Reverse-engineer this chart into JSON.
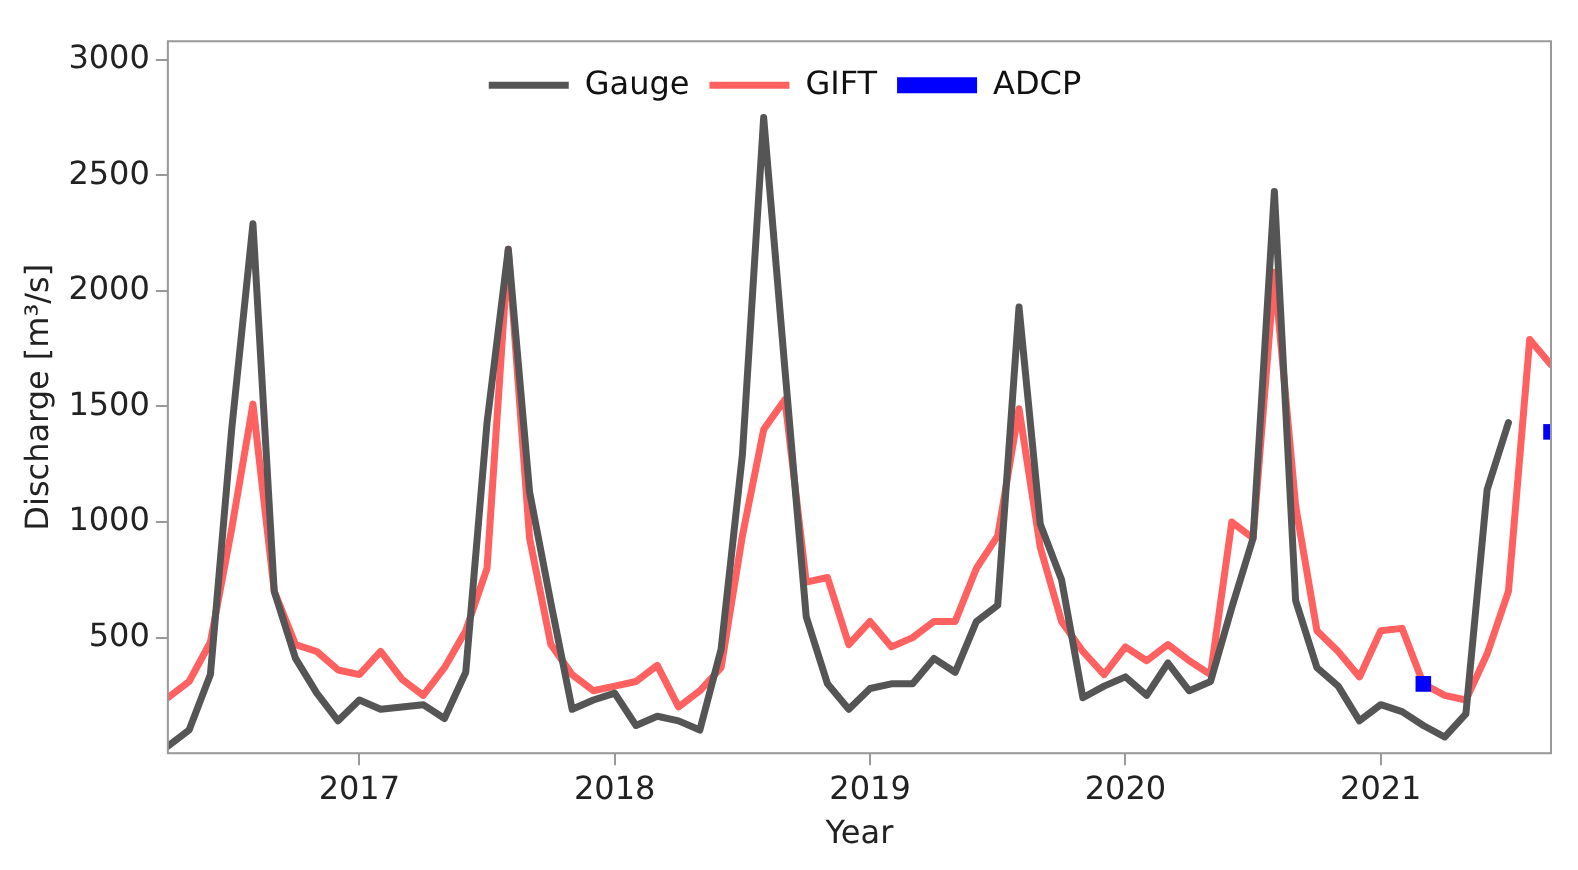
{
  "chart_data": {
    "type": "line",
    "xlabel": "Year",
    "ylabel": "Discharge [m³/s]",
    "x": [
      "2016-04",
      "2016-05",
      "2016-06",
      "2016-07",
      "2016-08",
      "2016-09",
      "2016-10",
      "2016-11",
      "2016-12",
      "2017-01",
      "2017-02",
      "2017-03",
      "2017-04",
      "2017-05",
      "2017-06",
      "2017-07",
      "2017-08",
      "2017-09",
      "2017-10",
      "2017-11",
      "2017-12",
      "2018-01",
      "2018-02",
      "2018-03",
      "2018-04",
      "2018-05",
      "2018-06",
      "2018-07",
      "2018-08",
      "2018-09",
      "2018-10",
      "2018-11",
      "2018-12",
      "2019-01",
      "2019-02",
      "2019-03",
      "2019-04",
      "2019-05",
      "2019-06",
      "2019-07",
      "2019-08",
      "2019-09",
      "2019-10",
      "2019-11",
      "2019-12",
      "2020-01",
      "2020-02",
      "2020-03",
      "2020-04",
      "2020-05",
      "2020-06",
      "2020-07",
      "2020-08",
      "2020-09",
      "2020-10",
      "2020-11",
      "2020-12",
      "2021-01",
      "2021-02",
      "2021-03",
      "2021-04",
      "2021-05",
      "2021-06",
      "2021-07",
      "2021-08",
      "2021-09"
    ],
    "series": [
      {
        "name": "Gauge",
        "color": "#555555",
        "marker": "none",
        "line_style": "solid",
        "values": [
          30,
          100,
          340,
          1400,
          2290,
          700,
          410,
          260,
          140,
          230,
          190,
          200,
          210,
          150,
          350,
          1430,
          2180,
          1130,
          650,
          190,
          230,
          260,
          120,
          160,
          140,
          100,
          450,
          1290,
          2750,
          1660,
          590,
          300,
          190,
          280,
          300,
          300,
          410,
          350,
          570,
          640,
          1930,
          990,
          750,
          240,
          290,
          330,
          250,
          390,
          270,
          310,
          630,
          930,
          2430,
          660,
          370,
          290,
          140,
          210,
          180,
          120,
          70,
          170,
          1140,
          1430,
          null,
          null
        ]
      },
      {
        "name": "GIFT",
        "color": "#ff6060",
        "marker": "none",
        "line_style": "solid",
        "values": [
          240,
          310,
          480,
          970,
          1510,
          700,
          470,
          440,
          360,
          340,
          440,
          320,
          250,
          370,
          530,
          800,
          2180,
          930,
          470,
          340,
          270,
          290,
          310,
          380,
          200,
          270,
          370,
          940,
          1400,
          1530,
          740,
          760,
          470,
          570,
          460,
          500,
          570,
          570,
          800,
          940,
          1490,
          890,
          570,
          440,
          340,
          460,
          400,
          470,
          400,
          340,
          1000,
          930,
          2080,
          1070,
          530,
          440,
          330,
          530,
          540,
          300,
          250,
          230,
          430,
          700,
          1790,
          1680
        ]
      },
      {
        "name": "ADCP",
        "type": "scatter",
        "color": "#0000ff",
        "marker": "square",
        "x": [
          "2021-03",
          "2021-09"
        ],
        "values": [
          300,
          1390
        ]
      }
    ],
    "xlim": [
      "2016-04",
      "2021-09"
    ],
    "xticks": [
      "2017",
      "2018",
      "2019",
      "2020",
      "2021"
    ],
    "ylim": [
      0,
      3080
    ],
    "yticks": [
      500,
      1000,
      1500,
      2000,
      2500,
      3000
    ],
    "grid": false,
    "legend": "top"
  }
}
